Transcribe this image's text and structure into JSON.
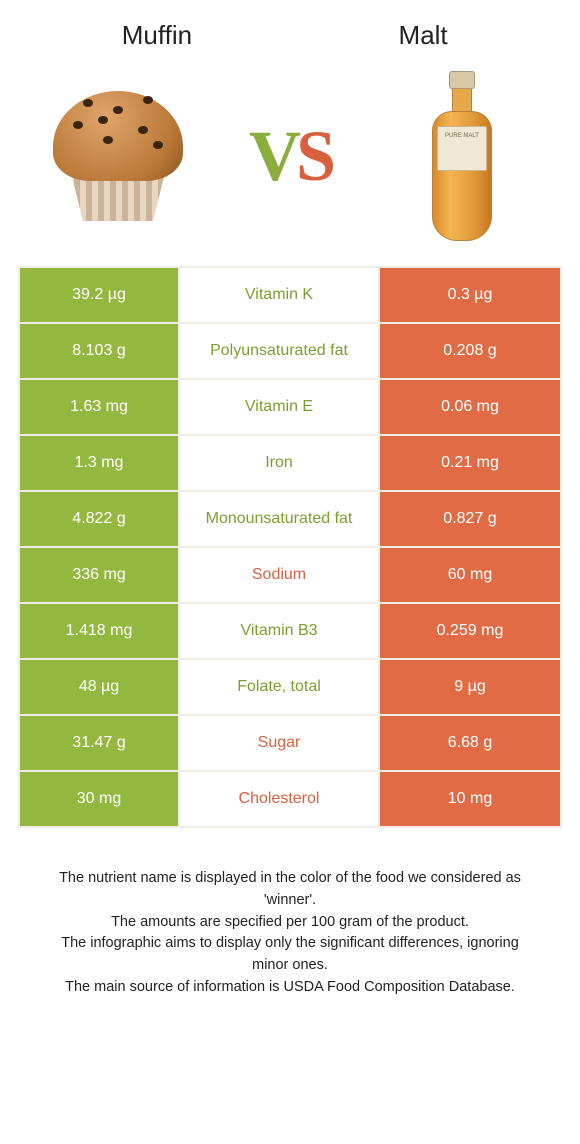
{
  "colors": {
    "left": "#94b83f",
    "right": "#e06b44",
    "left_text": "#7d9e2f",
    "right_text": "#d9603e",
    "row_border": "#f0ede6",
    "cell_text": "#ffffff"
  },
  "header": {
    "left_title": "Muffin",
    "right_title": "Malt",
    "vs_v": "V",
    "vs_s": "S",
    "bottle_label": "PURE MALT"
  },
  "rows": [
    {
      "left": "39.2 µg",
      "label": "Vitamin K",
      "right": "0.3 µg",
      "winner": "left"
    },
    {
      "left": "8.103 g",
      "label": "Polyunsaturated fat",
      "right": "0.208 g",
      "winner": "left"
    },
    {
      "left": "1.63 mg",
      "label": "Vitamin E",
      "right": "0.06 mg",
      "winner": "left"
    },
    {
      "left": "1.3 mg",
      "label": "Iron",
      "right": "0.21 mg",
      "winner": "left"
    },
    {
      "left": "4.822 g",
      "label": "Monounsaturated fat",
      "right": "0.827 g",
      "winner": "left"
    },
    {
      "left": "336 mg",
      "label": "Sodium",
      "right": "60 mg",
      "winner": "right"
    },
    {
      "left": "1.418 mg",
      "label": "Vitamin B3",
      "right": "0.259 mg",
      "winner": "left"
    },
    {
      "left": "48 µg",
      "label": "Folate, total",
      "right": "9 µg",
      "winner": "left"
    },
    {
      "left": "31.47 g",
      "label": "Sugar",
      "right": "6.68 g",
      "winner": "right"
    },
    {
      "left": "30 mg",
      "label": "Cholesterol",
      "right": "10 mg",
      "winner": "right"
    }
  ],
  "footer": {
    "line1": "The nutrient name is displayed in the color of the food we considered as 'winner'.",
    "line2": "The amounts are specified per 100 gram of the product.",
    "line3": "The infographic aims to display only the significant differences, ignoring minor ones.",
    "line4": "The main source of information is USDA Food Composition Database."
  }
}
